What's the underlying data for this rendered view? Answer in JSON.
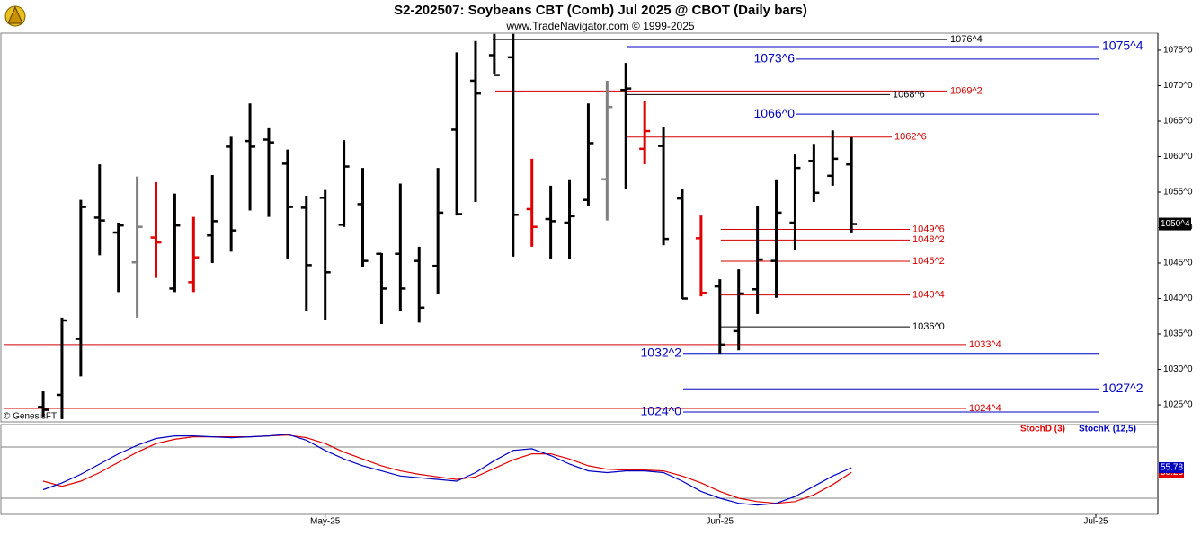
{
  "header": {
    "title": "S2-202507:  Soybeans CBT (Comb) Jul 2025 @ CBOT  (Daily bars)",
    "subtitle": "www.TradeNavigator.com © 1999-2025",
    "credit": "© GenesisFT"
  },
  "chart_data": [
    {
      "type": "ohlc",
      "categories": [
        null,
        null,
        null,
        null,
        null,
        null,
        null,
        null,
        null,
        null,
        null,
        null,
        null,
        null,
        null,
        null,
        null,
        null,
        null,
        null,
        null,
        null,
        null,
        null,
        null,
        null,
        null,
        null,
        null,
        null,
        null,
        null,
        null,
        null,
        null,
        null,
        null,
        null,
        null,
        null,
        null,
        null,
        null,
        null
      ],
      "open": [
        1024.7,
        1026.4,
        1034.3,
        1051.4,
        1049.3,
        1045.1,
        1048.6,
        1041.4,
        1042.3,
        1048.9,
        1061.4,
        1062.2,
        1062.4,
        1059.0,
        1052.8,
        1054.2,
        1050.4,
        1053.3,
        1046.3,
        1046.3,
        1045.3,
        1044.6,
        1063.8,
        1070.7,
        1074.3,
        1074.0,
        1052.6,
        1051.2,
        1050.7,
        1053.9,
        1056.8,
        1069.4,
        1061.1,
        1061.5,
        1054.1,
        1048.5,
        1041.7,
        1035.4,
        1041.3,
        1045.3,
        1050.7,
        1059.4,
        1057.3,
        1058.9
      ],
      "high": [
        1026.9,
        1037.3,
        1053.9,
        1058.9,
        1050.7,
        1057.2,
        1056.4,
        1054.8,
        1051.5,
        1057.4,
        1062.8,
        1067.5,
        1064.0,
        1061.0,
        1054.5,
        1055.3,
        1062.3,
        1058.4,
        1046.4,
        1056.2,
        1047.3,
        1058.4,
        1074.7,
        1076.3,
        1077.3,
        1077.3,
        1059.7,
        1055.9,
        1056.8,
        1067.5,
        1070.7,
        1073.2,
        1067.8,
        1064.2,
        1055.4,
        1051.7,
        1042.7,
        1044.1,
        1053.0,
        1056.8,
        1060.3,
        1061.8,
        1063.7,
        1062.7
      ],
      "low": [
        1023.2,
        1023.0,
        1029.0,
        1046.1,
        1040.9,
        1037.3,
        1042.9,
        1040.9,
        1040.9,
        1045.0,
        1046.6,
        1052.4,
        1051.5,
        1045.6,
        1038.3,
        1036.9,
        1050.1,
        1044.5,
        1036.4,
        1038.3,
        1036.6,
        1040.6,
        1051.7,
        1053.6,
        1071.7,
        1045.9,
        1047.3,
        1045.6,
        1045.6,
        1053.0,
        1051.0,
        1055.4,
        1058.9,
        1047.5,
        1039.9,
        1040.3,
        1032.2,
        1032.7,
        1037.8,
        1040.1,
        1046.9,
        1053.6,
        1055.9,
        1049.2
      ],
      "close": [
        1024.3,
        1036.9,
        1052.9,
        1051.0,
        1050.3,
        1050.1,
        1047.9,
        1050.3,
        1045.8,
        1050.9,
        1049.6,
        1061.4,
        1062.0,
        1052.9,
        1044.7,
        1043.7,
        1058.6,
        1045.3,
        1041.4,
        1041.4,
        1038.7,
        1052.1,
        1051.9,
        1068.9,
        1071.5,
        1051.8,
        1050.1,
        1050.9,
        1051.6,
        1061.9,
        1067.0,
        1069.6,
        1063.6,
        1048.4,
        1040.0,
        1040.8,
        1033.5,
        1040.7,
        1045.5,
        1052.1,
        1058.4,
        1054.9,
        1059.7,
        1050.5
      ],
      "bar_colors": [
        "#000000",
        "#000000",
        "#000000",
        "#000000",
        "#000000",
        "#808080",
        "#e00000",
        "#000000",
        "#e00000",
        "#000000",
        "#000000",
        "#000000",
        "#000000",
        "#000000",
        "#000000",
        "#000000",
        "#000000",
        "#000000",
        "#000000",
        "#000000",
        "#000000",
        "#000000",
        "#000000",
        "#000000",
        "#000000",
        "#000000",
        "#e00000",
        "#000000",
        "#000000",
        "#000000",
        "#808080",
        "#000000",
        "#e00000",
        "#000000",
        "#000000",
        "#e00000",
        "#000000",
        "#000000",
        "#000000",
        "#000000",
        "#000000",
        "#000000",
        "#000000",
        "#000000"
      ],
      "xlim": [
        -2.25,
        59.3
      ],
      "xticks": [
        {
          "value": 15,
          "label": "May-25"
        },
        {
          "value": 36,
          "label": "Jun-25"
        },
        {
          "value": 56,
          "label": "Jul-25"
        }
      ],
      "ylim": [
        1022.6,
        1077.4
      ],
      "yticks": [
        {
          "value": 1025,
          "label": "1025^0"
        },
        {
          "value": 1030,
          "label": "1030^0"
        },
        {
          "value": 1035,
          "label": "1035^0"
        },
        {
          "value": 1040,
          "label": "1040^0"
        },
        {
          "value": 1045,
          "label": "1045^0"
        },
        {
          "value": 1050,
          "label": "1050^0"
        },
        {
          "value": 1055,
          "label": "1055^0"
        },
        {
          "value": 1060,
          "label": "1060^0"
        },
        {
          "value": 1065,
          "label": "1065^0"
        },
        {
          "value": 1070,
          "label": "1070^0"
        },
        {
          "value": 1075,
          "label": "1075^0"
        }
      ],
      "last": {
        "value": 1050.5,
        "label": "1050^4"
      },
      "levels": [
        {
          "value": 1076.5,
          "label": "1076^4",
          "color": "#000000"
        },
        {
          "value": 1075.5,
          "label": "1075^4",
          "color": "#0000c0"
        },
        {
          "value": 1073.75,
          "label": "1073^6",
          "color": "#0000c0"
        },
        {
          "value": 1069.25,
          "label": "1069^2",
          "color": "#d00000"
        },
        {
          "value": 1068.75,
          "label": "1068^6",
          "color": "#000000"
        },
        {
          "value": 1066.0,
          "label": "1066^0",
          "color": "#0000c0"
        },
        {
          "value": 1062.75,
          "label": "1062^6",
          "color": "#d00000"
        },
        {
          "value": 1049.75,
          "label": "1049^6",
          "color": "#d00000"
        },
        {
          "value": 1048.25,
          "label": "1048^2",
          "color": "#d00000"
        },
        {
          "value": 1045.25,
          "label": "1045^2",
          "color": "#d00000"
        },
        {
          "value": 1040.5,
          "label": "1040^4",
          "color": "#d00000"
        },
        {
          "value": 1036.0,
          "label": "1036^0",
          "color": "#000000"
        },
        {
          "value": 1033.5,
          "label": "1033^4",
          "color": "#d00000"
        },
        {
          "value": 1032.25,
          "label": "1032^2",
          "color": "#0000c0"
        },
        {
          "value": 1027.25,
          "label": "1027^2",
          "color": "#0000c0"
        },
        {
          "value": 1024.5,
          "label": "1024^4",
          "color": "#d00000"
        },
        {
          "value": 1024.0,
          "label": "1024^0",
          "color": "#0000c0"
        }
      ]
    },
    {
      "type": "line",
      "ylim": [
        0,
        100
      ],
      "levels": [
        20,
        80
      ],
      "series": [
        {
          "name": "StochD (3)",
          "color": "#e00000",
          "values": [
            40,
            34,
            40,
            50,
            62,
            74,
            84,
            89,
            92,
            92,
            92,
            92,
            93,
            94,
            91,
            84,
            74,
            66,
            58,
            52,
            48,
            45,
            42,
            45,
            55,
            65,
            72,
            72,
            66,
            58,
            54,
            53,
            53,
            52,
            46,
            38,
            28,
            20,
            16,
            14,
            16,
            24,
            36,
            50.23
          ]
        },
        {
          "name": "StochK (12,5)",
          "color": "#0000c0",
          "values": [
            30,
            38,
            48,
            60,
            72,
            82,
            90,
            93,
            93,
            92,
            91,
            92,
            93,
            95,
            88,
            76,
            66,
            58,
            52,
            46,
            44,
            42,
            40,
            50,
            64,
            76,
            78,
            70,
            60,
            52,
            50,
            52,
            52,
            50,
            40,
            28,
            20,
            14,
            12,
            14,
            22,
            34,
            46,
            55.78
          ]
        }
      ]
    }
  ]
}
